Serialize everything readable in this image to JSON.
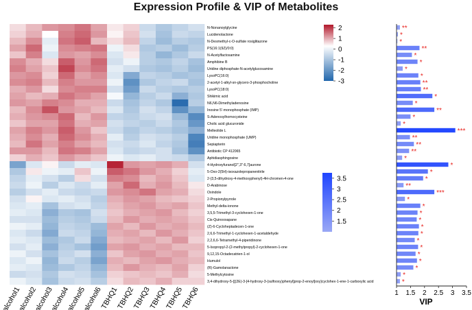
{
  "chart_data": [
    {
      "type": "heatmap",
      "title": "Expression Profile & VIP of Metabolites",
      "columns": [
        "alcohol1",
        "alcohol2",
        "alcohol3",
        "alcohol4",
        "alcohol5",
        "alcohol6",
        "TBHQ1",
        "TBHQ2",
        "TBHQ3",
        "TBHQ4",
        "TBHQ5",
        "TBHQ6"
      ],
      "rows": [
        "N-Nonanoylglycine",
        "Lucidenolactone",
        "N-Desmethyl-c-O-sulfate rosiglitazone",
        "PS(16:1(9Z)/0:0)",
        "N-Acetylfactosamine",
        "Amphibine B",
        "Uridine diphosphate-N-acetylglucosamine",
        "LysoPC(16:0)",
        "2-acetyl-1-alkyl-sn-glycero-3-phosphocholine",
        "LysoPC(18:0)",
        "Shikimic acid",
        "N6,N6-Dimethyladenosine",
        "Inosine 5'-monophosphate (IMP)",
        "S-Adenosylhomocysteine",
        "Cholic acid glucuronide",
        "Melleolide L",
        "Uridine monophosphate (UMP)",
        "Sepiapterin",
        "Antibiotic CP 412065",
        "Aphidiasphingosine",
        "4-Hydroxyfuranol[2'',3'':6,7]aurone",
        "5-Oxo-2(5H)-isoxazolepropanenitrile",
        "2-(3,5-dihydroxy-4-methoxyphenyl)-4H-chromen-4-one",
        "D-Arabinose",
        "Oxindole",
        "2-Propionylpyrrole",
        "Methyl-delta-ionone",
        "3,5,5-Trimethyl-3-cyclohexen-1-one",
        "Cis-Quinooxapane",
        "(Z)-6-Cycloheptadecen-1-one",
        "2,6,6-Trimethyl-1-cyclohexen-1-acetaldehyde",
        "2,2,6,6-Tetramethyl-4-piperidinone",
        "5-Isopropyl-2-(2-methylpropyl)-2-cyclohexen-1-one",
        "9,12,15-Octadecatrien-1-ol",
        "Humulol",
        "(R)-Gamolanactone",
        "5-Methylcytosine",
        "3,4-dihydroxy-5-{[(2E)-3-[4-hydroxy-3-(sulfooxy)phenyl]prop-2-enoyl]oxy}cyclohex-1-ene-1-carboxylic acid"
      ],
      "values": [
        [
          0.3,
          0.6,
          0.9,
          1.0,
          1.2,
          0.8,
          0.2,
          0.4,
          -0.6,
          -0.9,
          -0.7,
          -0.5
        ],
        [
          0.4,
          0.7,
          0.0,
          1.1,
          1.3,
          0.9,
          0.1,
          0.5,
          -0.5,
          -1.0,
          -0.6,
          -0.7
        ],
        [
          0.6,
          1.0,
          -0.3,
          1.2,
          1.4,
          0.6,
          0.3,
          0.6,
          -0.7,
          -1.1,
          -0.8,
          -0.9
        ],
        [
          0.8,
          1.3,
          -0.2,
          1.0,
          1.1,
          1.2,
          -0.2,
          0.3,
          -0.9,
          -0.8,
          -1.1,
          -0.8
        ],
        [
          0.5,
          1.1,
          -0.4,
          0.9,
          0.8,
          1.0,
          -0.4,
          0.2,
          -0.8,
          -1.2,
          -0.9,
          -0.6
        ],
        [
          1.0,
          0.7,
          0.3,
          1.4,
          0.9,
          1.3,
          -0.5,
          -0.2,
          -0.8,
          -0.9,
          -0.7,
          -1.0
        ],
        [
          1.1,
          0.8,
          0.5,
          1.6,
          1.0,
          1.2,
          -0.3,
          -0.5,
          -0.9,
          -1.0,
          -0.8,
          -1.1
        ],
        [
          0.9,
          1.0,
          0.4,
          1.3,
          0.8,
          1.0,
          -0.4,
          -1.4,
          -0.7,
          -0.8,
          -1.0,
          -0.9
        ],
        [
          1.0,
          1.1,
          0.6,
          1.1,
          0.9,
          0.9,
          -0.2,
          -1.8,
          -0.9,
          -0.7,
          -0.6,
          -1.0
        ],
        [
          0.7,
          0.9,
          0.3,
          1.0,
          1.1,
          1.1,
          -0.5,
          -1.6,
          -0.6,
          -0.8,
          -0.9,
          -0.8
        ],
        [
          0.8,
          0.6,
          0.7,
          1.2,
          1.0,
          0.8,
          -0.1,
          -1.2,
          -0.8,
          -0.6,
          -1.3,
          -0.9
        ],
        [
          0.9,
          0.8,
          1.1,
          1.0,
          0.7,
          0.7,
          -0.6,
          -1.0,
          -0.7,
          -0.9,
          -2.4,
          -0.8
        ],
        [
          0.6,
          1.0,
          1.5,
          0.9,
          0.8,
          0.6,
          -0.4,
          -0.9,
          -0.5,
          -0.7,
          -1.8,
          -1.2
        ],
        [
          0.7,
          0.9,
          1.0,
          1.3,
          0.6,
          0.9,
          -0.7,
          -0.8,
          -0.6,
          -0.5,
          -1.1,
          -1.9
        ],
        [
          0.5,
          0.8,
          0.8,
          1.2,
          0.7,
          0.8,
          -0.5,
          -0.7,
          -0.8,
          -0.6,
          -0.9,
          -1.7
        ],
        [
          0.8,
          1.1,
          0.9,
          1.4,
          0.9,
          0.5,
          -0.6,
          -0.9,
          -0.7,
          -0.8,
          -1.0,
          -1.3
        ],
        [
          0.7,
          1.0,
          0.7,
          1.3,
          1.0,
          0.7,
          -0.3,
          -0.8,
          -0.5,
          -0.6,
          -0.8,
          -2.0
        ],
        [
          0.6,
          1.2,
          0.8,
          1.1,
          0.8,
          0.6,
          -0.5,
          -0.6,
          -0.4,
          -0.7,
          -0.9,
          -2.1
        ],
        [
          0.9,
          0.9,
          0.6,
          1.2,
          1.1,
          0.8,
          -0.4,
          -0.7,
          -0.6,
          -0.5,
          -1.0,
          -1.8
        ],
        [
          0.4,
          0.7,
          0.5,
          0.9,
          0.7,
          0.5,
          -0.2,
          -0.4,
          -0.3,
          -0.5,
          -0.6,
          -0.9
        ],
        [
          -1.5,
          -0.4,
          0.1,
          -0.6,
          -0.3,
          -0.4,
          1.9,
          0.9,
          0.8,
          0.9,
          0.7,
          -0.5
        ],
        [
          -0.9,
          0.2,
          -0.2,
          -0.3,
          0.5,
          -0.2,
          1.4,
          1.2,
          0.9,
          0.7,
          0.4,
          -0.3
        ],
        [
          -0.7,
          -0.3,
          -0.5,
          -0.8,
          0.3,
          -0.5,
          1.1,
          1.0,
          0.6,
          0.8,
          0.5,
          -0.4
        ],
        [
          -0.6,
          -0.2,
          -0.8,
          -0.4,
          -0.6,
          -0.3,
          0.8,
          1.3,
          0.7,
          0.9,
          0.6,
          0.2
        ],
        [
          -0.8,
          -0.5,
          -0.3,
          -0.6,
          -0.7,
          -0.6,
          0.9,
          1.0,
          1.2,
          0.8,
          0.7,
          0.3
        ],
        [
          -0.5,
          0.1,
          -0.4,
          -0.3,
          -0.5,
          -0.8,
          0.7,
          0.9,
          0.8,
          0.6,
          0.5,
          0.4
        ],
        [
          -0.4,
          -0.3,
          -1.0,
          -0.5,
          -0.4,
          -0.7,
          0.6,
          0.8,
          0.9,
          0.7,
          0.8,
          0.5
        ],
        [
          -0.3,
          -0.4,
          -1.3,
          -0.9,
          -1.0,
          -0.5,
          0.5,
          0.7,
          0.8,
          0.9,
          0.6,
          0.4
        ],
        [
          -0.5,
          -0.5,
          -1.1,
          -0.8,
          -0.9,
          -0.6,
          0.6,
          0.9,
          0.7,
          0.8,
          0.7,
          0.5
        ],
        [
          -0.2,
          -0.3,
          -1.2,
          -0.7,
          -0.8,
          -1.1,
          0.8,
          0.6,
          0.9,
          0.7,
          0.8,
          0.6
        ],
        [
          -0.4,
          -0.6,
          -1.4,
          -0.6,
          -0.7,
          -1.2,
          0.7,
          0.8,
          0.6,
          0.9,
          0.7,
          0.5
        ],
        [
          -0.3,
          -0.4,
          -1.1,
          -0.9,
          -0.6,
          -1.4,
          0.6,
          0.7,
          0.8,
          0.6,
          0.9,
          0.4
        ],
        [
          -0.5,
          -0.3,
          -1.3,
          -0.8,
          -1.0,
          -1.6,
          0.8,
          0.9,
          0.7,
          0.8,
          0.6,
          0.6
        ],
        [
          -0.2,
          -0.5,
          -1.0,
          -0.7,
          -0.5,
          -1.3,
          0.5,
          0.8,
          0.9,
          0.7,
          0.8,
          0.5
        ],
        [
          -0.4,
          -0.2,
          -1.2,
          -0.6,
          -0.8,
          -1.5,
          0.7,
          0.6,
          0.8,
          0.9,
          0.7,
          0.6
        ],
        [
          -0.3,
          -0.4,
          -1.1,
          -0.9,
          -0.7,
          -1.2,
          0.6,
          0.9,
          0.7,
          0.6,
          0.8,
          0.4
        ],
        [
          -0.6,
          -0.5,
          -0.9,
          -0.5,
          -0.6,
          -1.0,
          0.4,
          0.5,
          0.6,
          0.5,
          0.7,
          0.3
        ],
        [
          -0.2,
          -0.4,
          -1.0,
          -0.6,
          -0.5,
          -0.8,
          0.3,
          0.6,
          0.5,
          0.7,
          0.4,
          0.4
        ]
      ],
      "colorbar": {
        "ticks": [
          "2",
          "1",
          "0",
          "-1",
          "-2",
          "-3"
        ],
        "range": [
          -3,
          2.3
        ]
      }
    },
    {
      "type": "bar",
      "orientation": "horizontal",
      "xlabel": "VIP",
      "xlim": [
        1,
        3.5
      ],
      "x_ticks": [
        "1",
        "1.5",
        "2",
        "2.5",
        "3",
        "3.5"
      ],
      "values": [
        1.12,
        1.05,
        1.03,
        1.82,
        1.55,
        1.75,
        1.22,
        1.78,
        1.85,
        1.87,
        2.28,
        1.58,
        2.35,
        1.5,
        1.15,
        3.1,
        1.48,
        1.62,
        1.45,
        1.2,
        2.85,
        2.12,
        1.95,
        1.25,
        2.35,
        1.3,
        1.85,
        1.75,
        1.72,
        1.8,
        1.78,
        1.65,
        1.77,
        1.68,
        1.73,
        1.6,
        1.15,
        1.12
      ],
      "significance": [
        "**",
        "*",
        "*",
        "**",
        "*",
        "*",
        "*",
        "*",
        "**",
        "**",
        "*",
        "*",
        "**",
        "*",
        "*",
        "***",
        "**",
        "**",
        "**",
        "*",
        "*",
        "*",
        "*",
        "**",
        "***",
        "*",
        "*",
        "*",
        "*",
        "*",
        "*",
        "*",
        "*",
        "*",
        "*",
        "*",
        "*",
        "*"
      ],
      "colorbar": {
        "ticks": [
          "3.5",
          "3",
          "2.5",
          "2",
          "1.5"
        ],
        "range": [
          1,
          3.75
        ]
      }
    }
  ]
}
